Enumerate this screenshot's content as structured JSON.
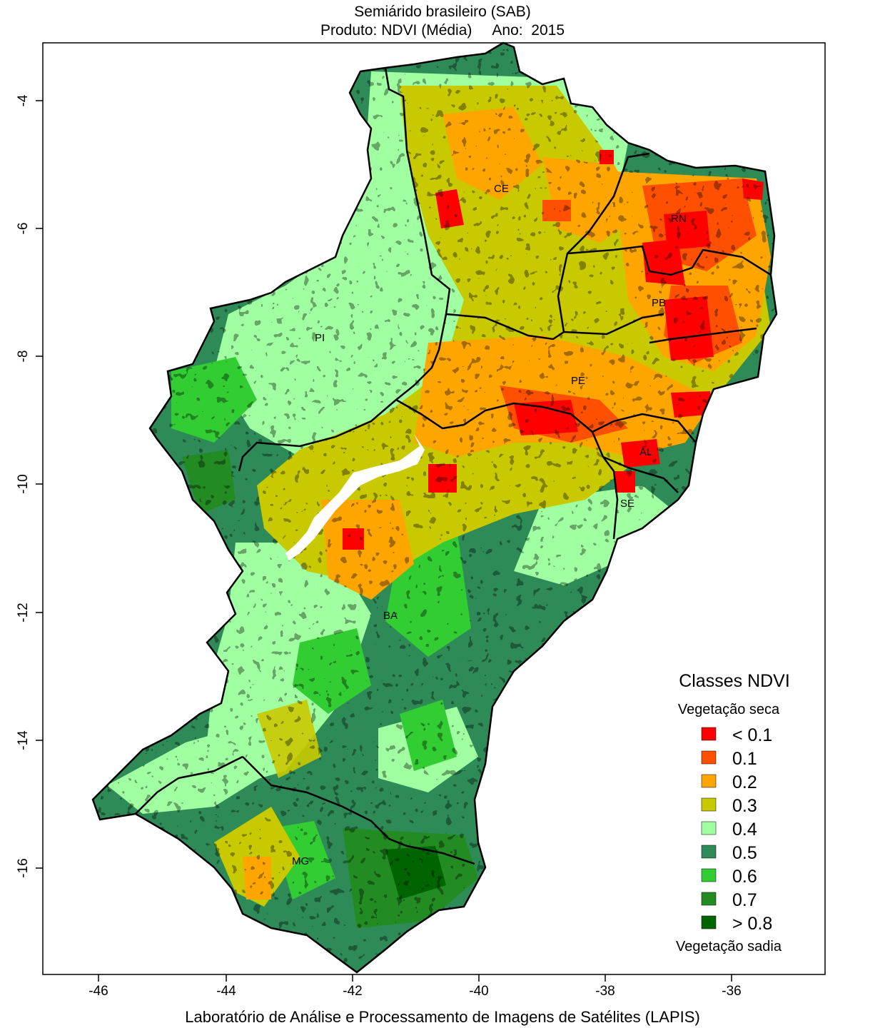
{
  "header": {
    "title_line1": "Semiárido brasileiro (SAB)",
    "title_line2": "Produto: NDVI (Média)     Ano:  2015"
  },
  "footer": {
    "credit": "Laboratório de Análise e Processamento de Imagens de Satélites (LAPIS)"
  },
  "axes": {
    "x_ticks": [
      "-46",
      "-44",
      "-42",
      "-40",
      "-38",
      "-36"
    ],
    "y_ticks": [
      "-4",
      "-6",
      "-8",
      "-10",
      "-12",
      "-14",
      "-16"
    ]
  },
  "states": [
    {
      "id": "CE",
      "label": "CE"
    },
    {
      "id": "RN",
      "label": "RN"
    },
    {
      "id": "PB",
      "label": "PB"
    },
    {
      "id": "PE",
      "label": "PE"
    },
    {
      "id": "PI",
      "label": "PI"
    },
    {
      "id": "AL",
      "label": "AL"
    },
    {
      "id": "SE",
      "label": "SE"
    },
    {
      "id": "BA",
      "label": "BA"
    },
    {
      "id": "MG",
      "label": "MG"
    }
  ],
  "legend": {
    "title": "Classes NDVI",
    "top_caption": "Vegetação seca",
    "bottom_caption": "Vegetação sadia",
    "classes": [
      {
        "label": "< 0.1",
        "color": "#ff0000"
      },
      {
        "label": "0.1",
        "color": "#ff4f00"
      },
      {
        "label": "0.2",
        "color": "#ffa500"
      },
      {
        "label": "0.3",
        "color": "#c9c900"
      },
      {
        "label": "0.4",
        "color": "#a0ffa0"
      },
      {
        "label": "0.5",
        "color": "#2e8b57"
      },
      {
        "label": "0.6",
        "color": "#32cd32"
      },
      {
        "label": "0.7",
        "color": "#228b22"
      },
      {
        "label": "> 0.8",
        "color": "#006400"
      }
    ]
  }
}
